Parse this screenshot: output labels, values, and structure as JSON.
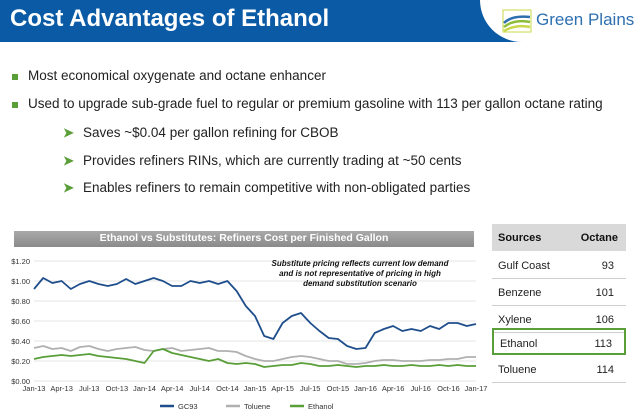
{
  "header": {
    "title": "Cost Advantages of Ethanol",
    "logo_text": "Green Plains"
  },
  "colors": {
    "header_bg": "#0a5aa5",
    "accent_green": "#5a9e3a",
    "gc93": "#1f4e8c",
    "toluene": "#b0b0b0",
    "ethanol": "#5a9e3a"
  },
  "bullets": [
    "Most economical oxygenate and octane enhancer",
    "Used to upgrade sub-grade fuel to regular or premium gasoline with 113 per gallon octane rating"
  ],
  "sub_bullets": [
    "Saves ~$0.04 per gallon refining for CBOB",
    "Provides refiners RINs, which are currently trading at ~50 cents",
    "Enables refiners to remain competitive with non-obligated parties"
  ],
  "chart_data": {
    "type": "line",
    "title": "Ethanol vs Substitutes: Refiners Cost per Finished Gallon",
    "annotation": "Substitute pricing reflects current low demand and is not representative of pricing in high demand substitution scenario",
    "y_ticks": [
      "$0.00",
      "$0.20",
      "$0.40",
      "$0.60",
      "$0.80",
      "$1.00",
      "$1.20"
    ],
    "x_ticks": [
      "Jan-13",
      "Apr-13",
      "Jul-13",
      "Oct-13",
      "Jan-14",
      "Apr-14",
      "Jul-14",
      "Oct-14",
      "Jan-15",
      "Apr-15",
      "Jul-15",
      "Oct-15",
      "Jan-16",
      "Apr-16",
      "Jul-16",
      "Oct-16",
      "Jan-17"
    ],
    "ylim": [
      0,
      1.2
    ],
    "grid": true,
    "legend": "bottom",
    "series": [
      {
        "name": "GC93",
        "values": [
          0.92,
          1.03,
          0.98,
          1.0,
          0.92,
          0.97,
          1.0,
          0.97,
          0.95,
          0.97,
          1.02,
          0.97,
          1.0,
          1.03,
          1.0,
          0.95,
          0.95,
          1.0,
          0.98,
          1.0,
          0.97,
          1.0,
          0.9,
          0.75,
          0.65,
          0.45,
          0.42,
          0.58,
          0.65,
          0.68,
          0.58,
          0.5,
          0.43,
          0.42,
          0.35,
          0.32,
          0.33,
          0.48,
          0.52,
          0.55,
          0.5,
          0.52,
          0.5,
          0.55,
          0.52,
          0.58,
          0.58,
          0.55,
          0.57
        ]
      },
      {
        "name": "Toluene",
        "values": [
          0.33,
          0.35,
          0.32,
          0.33,
          0.3,
          0.34,
          0.35,
          0.32,
          0.3,
          0.32,
          0.33,
          0.34,
          0.31,
          0.3,
          0.32,
          0.33,
          0.3,
          0.31,
          0.32,
          0.33,
          0.3,
          0.3,
          0.29,
          0.25,
          0.22,
          0.2,
          0.2,
          0.22,
          0.24,
          0.25,
          0.24,
          0.22,
          0.2,
          0.2,
          0.17,
          0.17,
          0.18,
          0.2,
          0.21,
          0.21,
          0.2,
          0.2,
          0.2,
          0.21,
          0.21,
          0.22,
          0.22,
          0.24,
          0.24
        ]
      },
      {
        "name": "Ethanol",
        "values": [
          0.22,
          0.24,
          0.25,
          0.26,
          0.25,
          0.26,
          0.27,
          0.25,
          0.24,
          0.23,
          0.22,
          0.2,
          0.18,
          0.3,
          0.32,
          0.28,
          0.26,
          0.24,
          0.22,
          0.2,
          0.22,
          0.18,
          0.17,
          0.18,
          0.17,
          0.14,
          0.15,
          0.16,
          0.16,
          0.18,
          0.17,
          0.15,
          0.15,
          0.16,
          0.15,
          0.14,
          0.15,
          0.15,
          0.16,
          0.15,
          0.15,
          0.16,
          0.15,
          0.15,
          0.16,
          0.15,
          0.16,
          0.15,
          0.15
        ]
      }
    ]
  },
  "octane_table": {
    "headers": [
      "Sources",
      "Octane"
    ],
    "rows": [
      {
        "source": "Gulf Coast",
        "octane": "93"
      },
      {
        "source": "Benzene",
        "octane": "101"
      },
      {
        "source": "Xylene",
        "octane": "106"
      },
      {
        "source": "Ethanol",
        "octane": "113",
        "highlight": true
      },
      {
        "source": "Toluene",
        "octane": "114"
      }
    ]
  }
}
